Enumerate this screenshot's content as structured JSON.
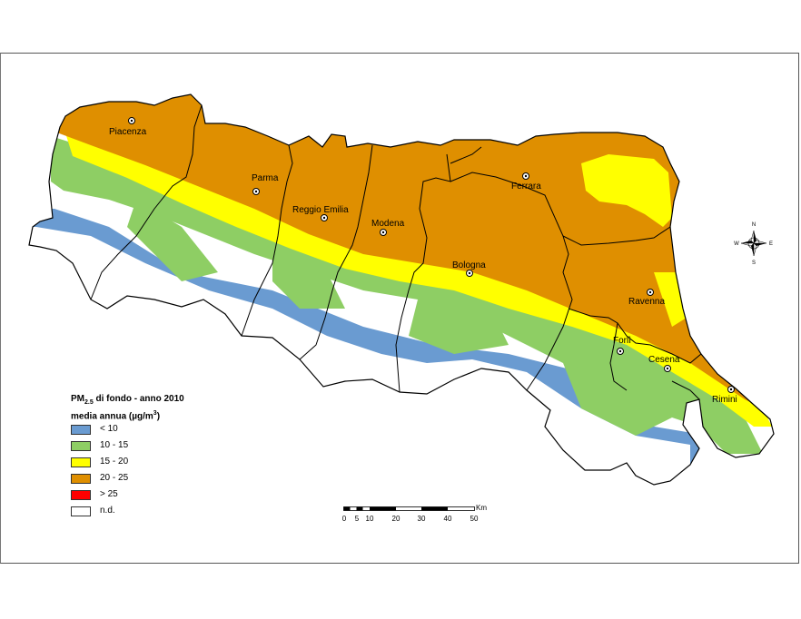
{
  "legend": {
    "title_line1_prefix": "PM",
    "title_line1_sub": "2.5",
    "title_line1_suffix": " di fondo - anno 2010",
    "title_line2_prefix": "media annua (µg/m",
    "title_line2_sup": "3",
    "title_line2_suffix": ")",
    "classes": [
      {
        "label": "< 10",
        "color": "#6a9bd1"
      },
      {
        "label": "10 - 15",
        "color": "#8ece64"
      },
      {
        "label": "15 - 20",
        "color": "#ffff00"
      },
      {
        "label": "20 - 25",
        "color": "#df8f00"
      },
      {
        "label": "> 25",
        "color": "#ff0000"
      },
      {
        "label": "n.d.",
        "color": "#ffffff"
      }
    ]
  },
  "cities": {
    "piacenza": "Piacenza",
    "parma": "Parma",
    "reggio_emilia": "Reggio Emilia",
    "modena": "Modena",
    "bologna": "Bologna",
    "ferrara": "Ferrara",
    "ravenna": "Ravenna",
    "forli": "Forlì",
    "cesena": "Cesena",
    "rimini": "Rimini"
  },
  "scale": {
    "unit": "Km",
    "ticks": [
      "0",
      "5",
      "10",
      "20",
      "30",
      "40",
      "50"
    ]
  },
  "compass": {
    "n": "N",
    "s": "S",
    "e": "E",
    "w": "W"
  }
}
